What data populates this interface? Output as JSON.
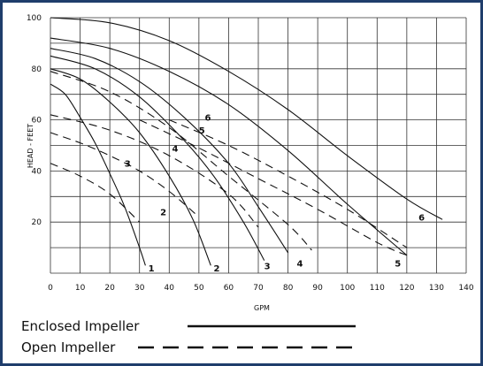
{
  "chart_data": {
    "type": "line",
    "xlabel": "GPM",
    "ylabel": "HEAD - FEET",
    "xlim": [
      0,
      140
    ],
    "ylim": [
      0,
      100
    ],
    "x_ticks": [
      "0",
      "10",
      "20",
      "30",
      "40",
      "50",
      "60",
      "70",
      "80",
      "90",
      "100",
      "110",
      "120",
      "130",
      "140"
    ],
    "y_ticks": [
      "20",
      "40",
      "60",
      "80",
      "100"
    ],
    "grid": true,
    "legend_position": "bottom-left",
    "legend": [
      {
        "label": "Enclosed Impeller",
        "style": "solid"
      },
      {
        "label": "Open Impeller",
        "style": "dashed"
      }
    ],
    "series": [
      {
        "name": "1",
        "style": "solid",
        "x": [
          0,
          5,
          10,
          15,
          20,
          25,
          30,
          32
        ],
        "y": [
          74,
          70,
          61,
          51,
          39,
          26,
          10,
          3
        ]
      },
      {
        "name": "2",
        "style": "solid",
        "x": [
          0,
          10,
          20,
          30,
          40,
          48,
          54
        ],
        "y": [
          80,
          76,
          67,
          55,
          38,
          21,
          3
        ]
      },
      {
        "name": "3",
        "style": "solid",
        "x": [
          0,
          15,
          30,
          45,
          55,
          65,
          72
        ],
        "y": [
          85,
          80,
          69,
          52,
          38,
          20,
          5
        ]
      },
      {
        "name": "4",
        "style": "solid",
        "x": [
          0,
          15,
          30,
          45,
          60,
          70,
          80
        ],
        "y": [
          88,
          84,
          75,
          61,
          43,
          26,
          8
        ]
      },
      {
        "name": "5",
        "style": "solid",
        "x": [
          0,
          20,
          40,
          60,
          80,
          100,
          120
        ],
        "y": [
          92,
          88,
          79,
          66,
          48,
          27,
          7
        ]
      },
      {
        "name": "6",
        "style": "solid",
        "x": [
          0,
          20,
          40,
          60,
          80,
          100,
          120,
          132
        ],
        "y": [
          100,
          98,
          91,
          79,
          64,
          46,
          29,
          21
        ]
      },
      {
        "name": "1",
        "style": "dashed",
        "x": [
          0,
          10,
          20,
          30
        ],
        "y": [
          43,
          38,
          31,
          20
        ]
      },
      {
        "name": "2",
        "style": "dashed",
        "x": [
          0,
          10,
          20,
          30,
          40,
          50
        ],
        "y": [
          55,
          51,
          46,
          40,
          32,
          22
        ]
      },
      {
        "name": "3",
        "style": "dashed",
        "x": [
          0,
          20,
          40,
          60,
          70
        ],
        "y": [
          62,
          56,
          46,
          31,
          18
        ]
      },
      {
        "name": "4",
        "style": "dashed",
        "x": [
          0,
          20,
          40,
          60,
          80,
          88
        ],
        "y": [
          79,
          71,
          57,
          38,
          19,
          9
        ]
      },
      {
        "name": "5",
        "style": "dashed",
        "x": [
          30,
          50,
          70,
          90,
          110,
          120
        ],
        "y": [
          60,
          49,
          37,
          25,
          12,
          7
        ]
      },
      {
        "name": "6",
        "style": "dashed",
        "x": [
          40,
          60,
          80,
          100,
          120
        ],
        "y": [
          60,
          50,
          38,
          25,
          10
        ]
      }
    ],
    "curve_labels": [
      {
        "text": "1",
        "x": 34,
        "y": 2
      },
      {
        "text": "2",
        "x": 56,
        "y": 2
      },
      {
        "text": "3",
        "x": 73,
        "y": 3
      },
      {
        "text": "4",
        "x": 84,
        "y": 4
      },
      {
        "text": "5",
        "x": 117,
        "y": 4
      },
      {
        "text": "6",
        "x": 125,
        "y": 22
      },
      {
        "text": "2",
        "x": 38,
        "y": 24
      },
      {
        "text": "3",
        "x": 26,
        "y": 43
      },
      {
        "text": "4",
        "x": 42,
        "y": 49
      },
      {
        "text": "5",
        "x": 51,
        "y": 56
      },
      {
        "text": "6",
        "x": 53,
        "y": 61
      }
    ]
  }
}
